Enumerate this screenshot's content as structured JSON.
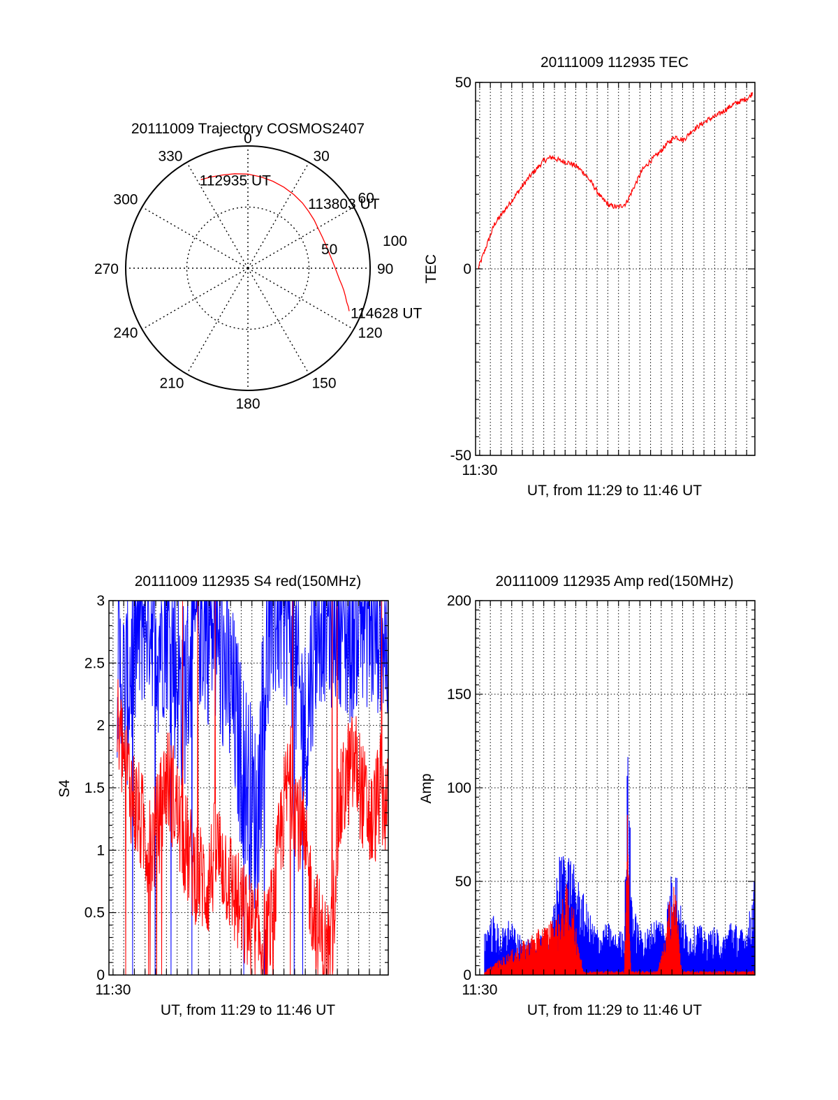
{
  "colors": {
    "red": "#ff0000",
    "blue": "#0000ff",
    "axis": "#000000",
    "grid": "#000000",
    "background": "#ffffff"
  },
  "chart_data": [
    {
      "id": "trajectory",
      "type": "scatter",
      "subtype": "polar",
      "title": "20111009 Trajectory COSMOS2407",
      "angle_labels": [
        "0",
        "30",
        "60",
        "90",
        "120",
        "150",
        "180",
        "210",
        "240",
        "270",
        "300",
        "330"
      ],
      "angle_ticks_deg": [
        0,
        30,
        60,
        90,
        120,
        150,
        180,
        210,
        240,
        270,
        300,
        330
      ],
      "radial_labels": [
        "50",
        "100"
      ],
      "radial_ticks": [
        50,
        100
      ],
      "rlim": [
        0,
        100
      ],
      "grid": true,
      "series": [
        {
          "color": "#ff0000",
          "azimuth_deg": [
            332,
            338,
            345,
            352,
            0,
            8,
            16,
            24,
            32,
            40,
            47,
            54,
            61,
            67,
            73,
            79,
            84,
            89,
            93,
            97,
            100,
            103,
            106,
            109,
            111,
            113
          ],
          "radius": [
            82,
            80.5,
            79,
            78,
            77,
            75.5,
            74,
            72.5,
            71,
            69.5,
            68,
            67,
            66,
            66,
            66.5,
            67.5,
            69,
            71,
            73,
            75.5,
            78,
            80.5,
            83,
            85.5,
            88,
            90
          ]
        }
      ],
      "annotations": [
        {
          "text": "112935 UT",
          "az": 332,
          "r": 82
        },
        {
          "text": "113803 UT",
          "az": 40,
          "r": 69.5
        },
        {
          "text": "114628 UT",
          "az": 113,
          "r": 90
        }
      ]
    },
    {
      "id": "tec",
      "type": "line",
      "title": "20111009 112935 TEC",
      "xlabel": "UT, from 11:29 to 11:46 UT",
      "ylabel": "TEC",
      "xlim": [
        0,
        17
      ],
      "ylim": [
        -50,
        50
      ],
      "yticks": [
        -50,
        0,
        50
      ],
      "xtick_labels": [
        "11:30"
      ],
      "xtick_positions": [
        0.25
      ],
      "x_grid": [
        0.25,
        0.9,
        1.55,
        2.2,
        2.85,
        3.5,
        4.15,
        4.8,
        5.45,
        6.1,
        6.75,
        7.4,
        8.05,
        8.7,
        9.35,
        10.0,
        10.65,
        11.3,
        11.95,
        12.6,
        13.25,
        13.9,
        14.55,
        15.2,
        15.85,
        16.5
      ],
      "y_grid": [
        0
      ],
      "grid": true,
      "series": [
        {
          "color": "#ff0000",
          "x": [
            0,
            0.5,
            1.0,
            1.5,
            2.0,
            2.5,
            3.0,
            3.5,
            4.0,
            4.5,
            5.0,
            5.5,
            6.0,
            6.5,
            7.0,
            7.5,
            8.0,
            8.5,
            9.0,
            9.5,
            10.0,
            10.5,
            11.0,
            11.5,
            12.0,
            12.5,
            13.0,
            13.5,
            14.0,
            14.5,
            15.0,
            15.5,
            16.0,
            16.5,
            17.0
          ],
          "y": [
            0,
            6,
            12,
            15,
            18,
            21,
            24,
            26.5,
            29,
            30,
            29,
            28.5,
            27.5,
            25.5,
            22.5,
            19,
            17,
            16.5,
            17.5,
            22,
            26.5,
            29,
            31,
            33.5,
            35.5,
            34.5,
            37,
            38.5,
            40,
            41,
            42.5,
            44,
            45,
            46,
            49
          ]
        }
      ]
    },
    {
      "id": "s4",
      "type": "line",
      "title": "20111009 112935 S4 red(150MHz)",
      "xlabel": "UT, from 11:29 to 11:46 UT",
      "ylabel": "S4",
      "xlim": [
        0,
        17
      ],
      "ylim": [
        0,
        3
      ],
      "yticks": [
        0,
        0.5,
        1,
        1.5,
        2,
        2.5,
        3
      ],
      "ytick_labels": [
        "0",
        "0.5",
        "1",
        "1.5",
        "2",
        "2.5",
        "3"
      ],
      "xtick_labels": [
        "11:30"
      ],
      "xtick_positions": [
        0.25
      ],
      "x_grid": [
        0.25,
        0.9,
        1.55,
        2.2,
        2.85,
        3.5,
        4.15,
        4.8,
        5.45,
        6.1,
        6.75,
        7.4,
        8.05,
        8.7,
        9.35,
        10.0,
        10.65,
        11.3,
        11.95,
        12.6,
        13.25,
        13.9,
        14.55,
        15.2,
        15.85,
        16.5
      ],
      "grid": true,
      "series": [
        {
          "color": "#0000ff",
          "x": [
            0,
            0.5,
            1.0,
            1.5,
            2.0,
            2.5,
            3.0,
            3.5,
            4.0,
            4.5,
            5.0,
            5.5,
            6.0,
            6.5,
            7.0,
            7.5,
            8.0,
            8.5,
            9.0,
            9.5,
            10.0,
            10.5,
            11.0,
            11.5,
            12.0,
            12.5,
            13.0,
            13.5,
            14.0,
            14.5,
            15.0,
            15.5,
            16.0,
            16.5,
            17.0
          ],
          "y": [
            2.5,
            2.2,
            2.6,
            2.9,
            3.0,
            2.7,
            2.9,
            2.5,
            2.2,
            2.6,
            2.9,
            2.8,
            2.7,
            2.5,
            2.2,
            1.8,
            1.5,
            1.2,
            2.4,
            2.9,
            3.0,
            2.9,
            2.3,
            1.9,
            2.8,
            3.0,
            2.9,
            3.0,
            2.7,
            2.9,
            3.0,
            2.8,
            2.9,
            2.6,
            2.5
          ]
        },
        {
          "color": "#ff0000",
          "x": [
            0,
            0.5,
            1.0,
            1.5,
            2.0,
            2.5,
            3.0,
            3.5,
            4.0,
            4.5,
            5.0,
            5.5,
            6.0,
            6.5,
            7.0,
            7.5,
            8.0,
            8.5,
            9.0,
            9.5,
            10.0,
            10.5,
            11.0,
            11.5,
            12.0,
            12.5,
            13.0,
            13.5,
            14.0,
            14.5,
            15.0,
            15.5,
            16.0,
            16.5,
            17.0
          ],
          "y": [
            2.0,
            1.7,
            1.4,
            1.2,
            1.0,
            1.2,
            1.6,
            1.4,
            1.1,
            0.9,
            0.8,
            0.7,
            1.0,
            0.9,
            0.7,
            0.5,
            0.4,
            0.3,
            0.25,
            0.5,
            1.2,
            1.6,
            1.3,
            0.9,
            0.5,
            0.25,
            0.15,
            1.3,
            1.6,
            1.7,
            1.4,
            1.2,
            1.5,
            1.3,
            0.7
          ]
        }
      ]
    },
    {
      "id": "amp",
      "type": "area",
      "title": "20111009 112935 Amp red(150MHz)",
      "xlabel": "UT, from 11:29 to 11:46 UT",
      "ylabel": "Amp",
      "xlim": [
        0,
        17
      ],
      "ylim": [
        0,
        200
      ],
      "yticks": [
        0,
        50,
        100,
        150,
        200
      ],
      "xtick_labels": [
        "11:30"
      ],
      "xtick_positions": [
        0.25
      ],
      "x_grid": [
        0.25,
        0.9,
        1.55,
        2.2,
        2.85,
        3.5,
        4.15,
        4.8,
        5.45,
        6.1,
        6.75,
        7.4,
        8.05,
        8.7,
        9.35,
        10.0,
        10.65,
        11.3,
        11.95,
        12.6,
        13.25,
        13.9,
        14.55,
        15.2,
        15.85,
        16.5
      ],
      "y_grid": [
        50,
        100,
        150
      ],
      "grid": true,
      "series": [
        {
          "color": "#0000ff",
          "x": [
            0,
            0.5,
            1.0,
            1.5,
            2.0,
            2.5,
            3.0,
            3.5,
            4.0,
            4.5,
            5.0,
            5.5,
            6.0,
            6.5,
            7.0,
            7.5,
            8.0,
            8.5,
            8.7,
            9.0,
            9.5,
            10.0,
            10.5,
            11.0,
            11.3,
            11.6,
            12.0,
            12.5,
            13.0,
            13.5,
            14.0,
            14.5,
            15.0,
            15.5,
            16.0,
            16.5,
            17.0
          ],
          "y": [
            24,
            30,
            22,
            28,
            20,
            18,
            16,
            20,
            18,
            58,
            66,
            52,
            40,
            28,
            22,
            26,
            20,
            24,
            115,
            36,
            22,
            24,
            30,
            28,
            48,
            58,
            30,
            22,
            26,
            20,
            24,
            18,
            30,
            22,
            25,
            52,
            48
          ]
        },
        {
          "color": "#ff0000",
          "x": [
            0,
            4.5,
            5.0,
            5.5,
            6.0,
            8.5,
            8.7,
            8.9,
            10.5,
            11.0,
            11.3,
            11.6,
            12.0,
            17.0
          ],
          "y": [
            2,
            30,
            45,
            30,
            2,
            2,
            90,
            2,
            2,
            18,
            42,
            46,
            2,
            2
          ]
        }
      ]
    }
  ]
}
